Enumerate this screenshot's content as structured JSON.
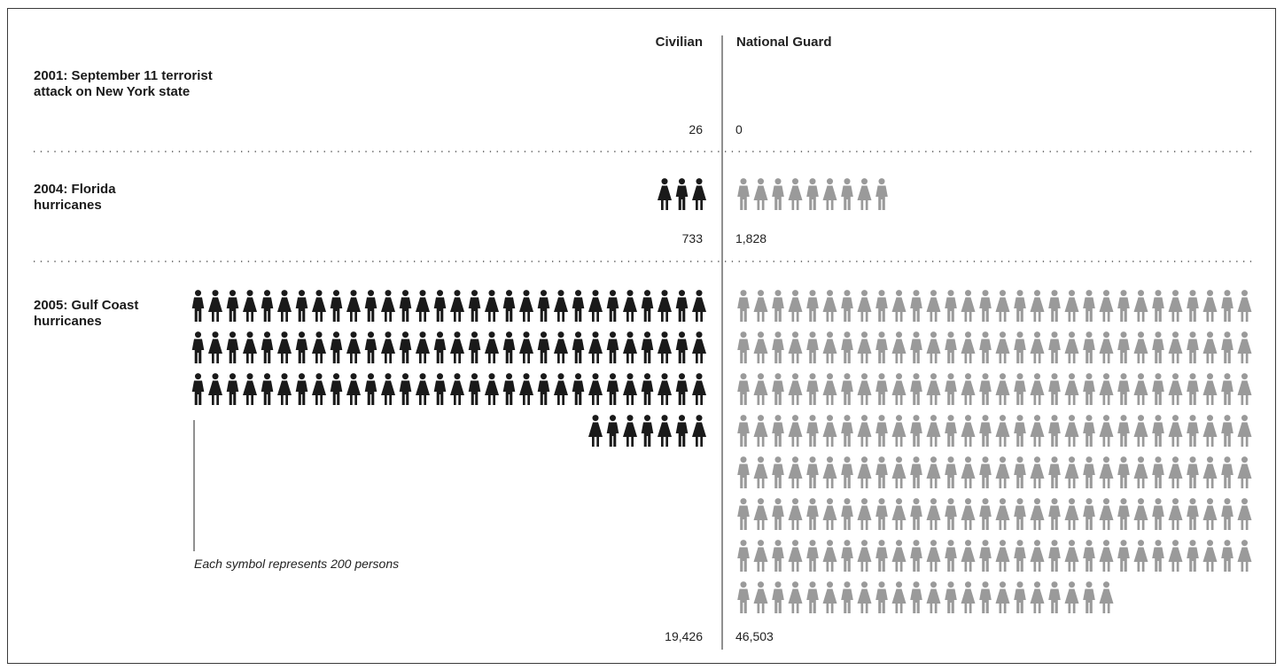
{
  "chart_data": {
    "type": "pictograph",
    "unit": "Each symbol represents 200 persons",
    "columns": [
      {
        "key": "civilian",
        "label": "Civilian",
        "color": "#1a1a1a"
      },
      {
        "key": "guard",
        "label": "National Guard",
        "color": "#9a9a9a"
      }
    ],
    "rows": [
      {
        "label": [
          "2001: September 11 terrorist",
          "attack on New York state"
        ],
        "civilian": 26,
        "guard": 0,
        "civilian_text": "26",
        "guard_text": "0"
      },
      {
        "label": [
          "2004: Florida",
          "hurricanes"
        ],
        "civilian": 733,
        "guard": 1828,
        "civilian_text": "733",
        "guard_text": "1,828"
      },
      {
        "label": [
          "2005: Gulf Coast",
          "hurricanes"
        ],
        "civilian": 19426,
        "guard": 46503,
        "civilian_text": "19,426",
        "guard_text": "46,503"
      }
    ]
  }
}
